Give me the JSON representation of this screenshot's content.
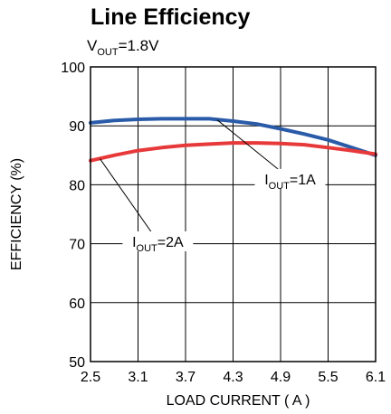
{
  "chart_data": {
    "type": "line",
    "title": "Line Efficiency",
    "subtitle": {
      "main": "V",
      "sub": "OUT",
      "rest": "=1.8V"
    },
    "xlabel": "LOAD CURRENT ( A )",
    "ylabel": "EFFICIENCY (%)",
    "xlim": [
      2.5,
      6.1
    ],
    "ylim": [
      50,
      100
    ],
    "x_ticks": [
      "2.5",
      "3.1",
      "3.7",
      "4.3",
      "4.9",
      "5.5",
      "6.1"
    ],
    "y_ticks": [
      "50",
      "60",
      "70",
      "80",
      "90",
      "100"
    ],
    "grid": true,
    "series": [
      {
        "name": "IOUT=1A",
        "color": "#2a5ba8",
        "x": [
          2.5,
          2.8,
          3.1,
          3.4,
          3.7,
          4.0,
          4.3,
          4.6,
          4.9,
          5.2,
          5.5,
          5.8,
          6.1
        ],
        "y": [
          90.5,
          90.9,
          91.1,
          91.2,
          91.2,
          91.2,
          90.8,
          90.3,
          89.5,
          88.6,
          87.6,
          86.3,
          85.0
        ]
      },
      {
        "name": "IOUT=2A",
        "color": "#e8393a",
        "x": [
          2.5,
          2.8,
          3.1,
          3.4,
          3.7,
          4.0,
          4.3,
          4.6,
          4.9,
          5.2,
          5.5,
          5.8,
          6.1
        ],
        "y": [
          84.1,
          85.0,
          85.8,
          86.3,
          86.7,
          86.9,
          87.1,
          87.1,
          87.0,
          86.8,
          86.3,
          85.8,
          85.2
        ]
      }
    ],
    "annotations": [
      {
        "main": "I",
        "sub": "OUT",
        "rest": "=1A",
        "series": "IOUT=1A",
        "at_x": 4.1,
        "at_y": 91.0,
        "label_x": 5.02,
        "label_y": 81.0
      },
      {
        "main": "I",
        "sub": "OUT",
        "rest": "=2A",
        "series": "IOUT=2A",
        "at_x": 2.62,
        "at_y": 84.4,
        "label_x": 3.35,
        "label_y": 70.4
      }
    ]
  }
}
